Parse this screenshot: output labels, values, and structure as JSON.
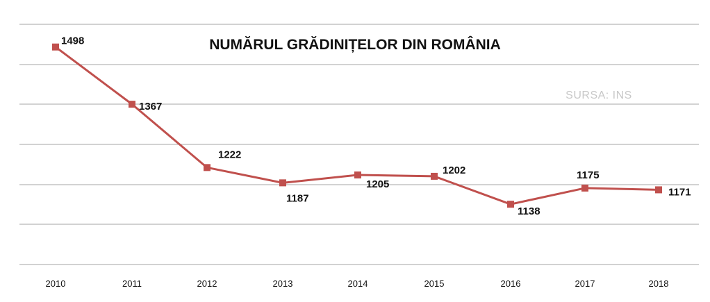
{
  "chart_data": {
    "type": "line",
    "title": "NUMĂRUL GRĂDINIȚELOR DIN ROMÂNIA",
    "source_note": "SURSA: INS",
    "categories": [
      "2010",
      "2011",
      "2012",
      "2013",
      "2014",
      "2015",
      "2016",
      "2017",
      "2018"
    ],
    "series": [
      {
        "values": [
          1498,
          1367,
          1222,
          1187,
          1205,
          1202,
          1138,
          1175,
          1171
        ]
      }
    ],
    "data_labels": true,
    "ylim": [
      1000,
      1550
    ],
    "grid": true,
    "line_color": "#c0504d",
    "marker": "square"
  }
}
